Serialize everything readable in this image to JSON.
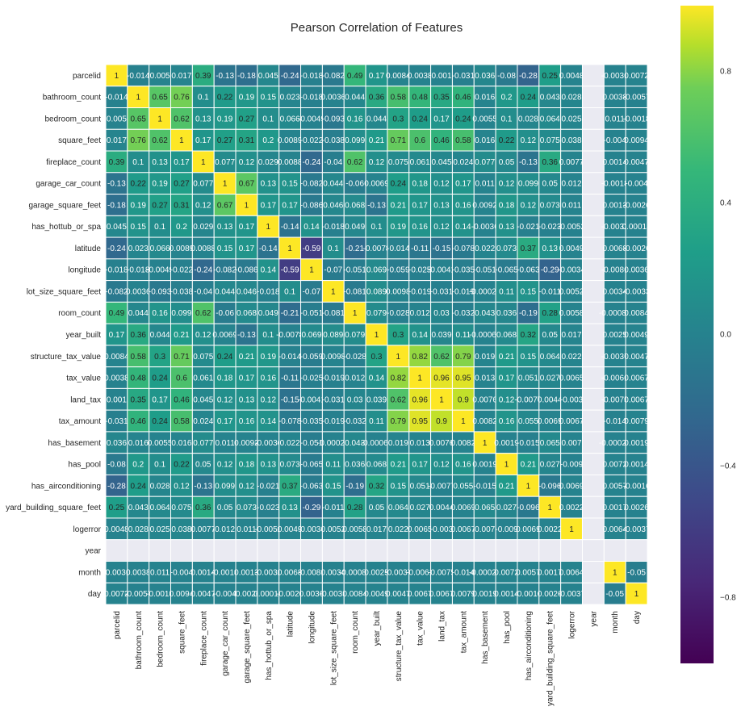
{
  "chart_data": {
    "type": "heatmap",
    "title": "Pearson Correlation of Features",
    "labels": [
      "parcelid",
      "bathroom_count",
      "bedroom_count",
      "square_feet",
      "fireplace_count",
      "garage_car_count",
      "garage_square_feet",
      "has_hottub_or_spa",
      "latitude",
      "longitude",
      "lot_size_square_feet",
      "room_count",
      "year_built",
      "structure_tax_value",
      "tax_value",
      "land_tax",
      "tax_amount",
      "has_basement",
      "has_pool",
      "has_airconditioning",
      "yard_building_square_feet",
      "logerror",
      "year",
      "month",
      "day"
    ],
    "vmin": -1,
    "vmax": 1,
    "colormap": "viridis",
    "colorbar_ticks": [
      "0.8",
      "0.4",
      "0.0",
      "−0.4",
      "−0.8"
    ],
    "colorbar_tick_values": [
      0.8,
      0.4,
      0,
      -0.4,
      -0.8
    ],
    "matrix": [
      [
        1,
        -0.014,
        0.005,
        0.017,
        0.39,
        -0.13,
        -0.18,
        0.045,
        -0.24,
        -0.018,
        -0.082,
        0.49,
        0.17,
        0.0084,
        0.0038,
        0.001,
        -0.031,
        0.036,
        -0.08,
        -0.28,
        0.25,
        0.0048,
        null,
        -0.0031,
        0.0072
      ],
      [
        -0.014,
        1,
        0.65,
        0.76,
        0.1,
        0.22,
        0.19,
        0.15,
        0.023,
        -0.018,
        0.0036,
        0.044,
        0.36,
        0.58,
        0.48,
        0.35,
        0.46,
        0.016,
        0.2,
        0.24,
        0.043,
        0.028,
        null,
        0.0038,
        -0.0057
      ],
      [
        0.005,
        0.65,
        1,
        0.62,
        0.13,
        0.19,
        0.27,
        0.1,
        0.066,
        -0.0049,
        -0.093,
        0.16,
        0.044,
        0.3,
        0.24,
        0.17,
        0.24,
        0.0055,
        0.1,
        0.028,
        0.064,
        0.025,
        null,
        0.011,
        -0.0018
      ],
      [
        0.017,
        0.76,
        0.62,
        1,
        0.17,
        0.27,
        0.31,
        0.2,
        0.0089,
        -0.022,
        -0.038,
        0.099,
        0.21,
        0.71,
        0.6,
        0.46,
        0.58,
        0.016,
        0.22,
        0.12,
        0.075,
        0.038,
        null,
        -0.004,
        0.0094
      ],
      [
        0.39,
        0.1,
        0.13,
        0.17,
        1,
        0.077,
        0.12,
        0.029,
        0.0088,
        -0.24,
        -0.04,
        0.62,
        0.12,
        0.075,
        0.061,
        0.045,
        0.024,
        0.077,
        0.05,
        -0.13,
        0.36,
        0.0077,
        null,
        0.0014,
        0.0047
      ],
      [
        -0.13,
        0.22,
        0.19,
        0.27,
        0.077,
        1,
        0.67,
        0.13,
        0.15,
        -0.082,
        0.044,
        -0.06,
        0.0069,
        0.24,
        0.18,
        0.12,
        0.17,
        0.011,
        0.12,
        0.099,
        0.05,
        0.012,
        null,
        -0.0018,
        -0.004
      ],
      [
        -0.18,
        0.19,
        0.27,
        0.31,
        0.12,
        0.67,
        1,
        0.17,
        0.17,
        -0.086,
        0.046,
        0.068,
        -0.13,
        0.21,
        0.17,
        0.13,
        0.16,
        0.0092,
        0.18,
        0.12,
        0.073,
        0.011,
        null,
        0.0013,
        -0.0026
      ],
      [
        0.045,
        0.15,
        0.1,
        0.2,
        0.029,
        0.13,
        0.17,
        1,
        -0.14,
        0.14,
        -0.018,
        0.049,
        0.1,
        0.19,
        0.16,
        0.12,
        0.14,
        -0.0036,
        0.13,
        -0.021,
        -0.023,
        -0.0052,
        null,
        -0.0032,
        0.00014
      ],
      [
        -0.24,
        0.023,
        0.066,
        0.0089,
        0.0088,
        0.15,
        0.17,
        -0.14,
        1,
        -0.59,
        0.1,
        -0.21,
        -0.0078,
        -0.014,
        -0.11,
        -0.15,
        -0.078,
        0.022,
        0.073,
        0.37,
        0.13,
        0.0049,
        null,
        0.0068,
        -0.0026
      ],
      [
        -0.018,
        -0.018,
        -0.0049,
        -0.022,
        -0.24,
        -0.082,
        -0.086,
        0.14,
        -0.59,
        1,
        -0.07,
        -0.051,
        0.069,
        -0.059,
        -0.025,
        -0.0041,
        -0.035,
        -0.051,
        -0.065,
        -0.063,
        -0.29,
        -0.0034,
        null,
        -0.0081,
        0.0036
      ],
      [
        -0.082,
        0.0036,
        -0.093,
        -0.038,
        -0.04,
        0.044,
        0.046,
        -0.018,
        0.1,
        -0.07,
        1,
        -0.081,
        0.089,
        0.0098,
        -0.019,
        -0.031,
        -0.019,
        -0.00021,
        0.11,
        0.15,
        -0.011,
        0.0052,
        null,
        0.0034,
        -0.0033
      ],
      [
        0.49,
        0.044,
        0.16,
        0.099,
        0.62,
        -0.06,
        0.068,
        0.049,
        -0.21,
        -0.051,
        -0.081,
        1,
        0.079,
        -0.028,
        0.012,
        0.03,
        -0.032,
        0.043,
        0.036,
        -0.19,
        0.28,
        0.0058,
        null,
        -0.00082,
        0.0084
      ],
      [
        0.17,
        0.36,
        0.044,
        0.21,
        0.12,
        0.0069,
        -0.13,
        0.1,
        -0.0078,
        0.069,
        0.089,
        0.079,
        1,
        0.3,
        0.14,
        0.039,
        0.11,
        -0.00066,
        0.068,
        0.32,
        0.05,
        0.017,
        null,
        0.0025,
        0.0049
      ],
      [
        0.0084,
        0.58,
        0.3,
        0.71,
        0.075,
        0.24,
        0.21,
        0.19,
        -0.014,
        -0.059,
        0.0098,
        -0.028,
        0.3,
        1,
        0.82,
        0.62,
        0.79,
        0.019,
        0.21,
        0.15,
        0.064,
        0.022,
        null,
        -0.0037,
        0.0047
      ],
      [
        0.0038,
        0.48,
        0.24,
        0.6,
        0.061,
        0.18,
        0.17,
        0.16,
        -0.11,
        -0.025,
        -0.019,
        0.012,
        0.14,
        0.82,
        1,
        0.96,
        0.95,
        0.013,
        0.17,
        0.051,
        0.027,
        0.0065,
        null,
        -0.0061,
        0.0067
      ],
      [
        0.001,
        0.35,
        0.17,
        0.46,
        0.045,
        0.12,
        0.13,
        0.12,
        -0.15,
        -0.0041,
        -0.031,
        0.03,
        0.039,
        0.62,
        0.96,
        1,
        0.9,
        0.0076,
        0.12,
        -0.0077,
        0.0044,
        -0.003,
        null,
        -0.0075,
        0.0067
      ],
      [
        -0.031,
        0.46,
        0.24,
        0.58,
        0.024,
        0.17,
        0.16,
        0.14,
        -0.078,
        -0.035,
        -0.019,
        -0.032,
        0.11,
        0.79,
        0.95,
        0.9,
        1,
        0.0082,
        0.16,
        0.055,
        0.0069,
        0.0067,
        null,
        -0.014,
        0.0079
      ],
      [
        0.036,
        0.016,
        0.0055,
        0.016,
        0.077,
        0.011,
        0.0092,
        -0.0036,
        0.022,
        -0.051,
        -0.00021,
        0.043,
        -0.00066,
        0.019,
        0.013,
        0.0076,
        0.0082,
        1,
        0.0019,
        -0.015,
        0.065,
        0.007,
        null,
        -0.00028,
        0.0019
      ],
      [
        -0.08,
        0.2,
        0.1,
        0.22,
        0.05,
        0.12,
        0.18,
        0.13,
        0.073,
        -0.065,
        0.11,
        0.036,
        0.068,
        0.21,
        0.17,
        0.12,
        0.16,
        0.0019,
        1,
        0.21,
        0.027,
        -0.009,
        null,
        0.0072,
        0.0014
      ],
      [
        -0.28,
        0.24,
        0.028,
        0.12,
        -0.13,
        0.099,
        0.12,
        -0.021,
        0.37,
        -0.063,
        0.15,
        -0.19,
        0.32,
        0.15,
        0.051,
        -0.0077,
        0.055,
        -0.015,
        0.21,
        1,
        -0.096,
        0.0069,
        null,
        0.0057,
        -0.0016
      ],
      [
        0.25,
        0.043,
        0.064,
        0.075,
        0.36,
        0.05,
        0.073,
        -0.023,
        0.13,
        -0.29,
        -0.011,
        0.28,
        0.05,
        0.064,
        0.027,
        0.0044,
        0.0069,
        0.065,
        0.027,
        -0.096,
        1,
        0.0022,
        null,
        0.0017,
        0.0026
      ],
      [
        0.0048,
        0.028,
        0.025,
        0.038,
        0.0077,
        0.012,
        0.011,
        -0.0052,
        0.0049,
        -0.0034,
        0.0052,
        0.0058,
        0.017,
        0.022,
        0.0065,
        -0.003,
        0.0067,
        0.007,
        -0.009,
        0.0069,
        0.0022,
        1,
        null,
        0.0064,
        -0.0037
      ],
      [
        null,
        null,
        null,
        null,
        null,
        null,
        null,
        null,
        null,
        null,
        null,
        null,
        null,
        null,
        null,
        null,
        null,
        null,
        null,
        null,
        null,
        null,
        null,
        null,
        null
      ],
      [
        -0.0031,
        0.0038,
        0.011,
        -0.004,
        0.0014,
        -0.0018,
        0.0013,
        -0.0032,
        0.0068,
        -0.0081,
        0.0034,
        -0.00082,
        0.0025,
        -0.0037,
        -0.0061,
        -0.0075,
        -0.014,
        -0.00028,
        0.0072,
        0.0057,
        0.0017,
        0.0064,
        null,
        1,
        -0.05
      ],
      [
        0.0072,
        -0.0057,
        -0.0018,
        0.0094,
        0.0047,
        -0.004,
        -0.0026,
        0.00014,
        -0.0026,
        0.0036,
        -0.0033,
        0.0084,
        0.0049,
        0.0047,
        0.0067,
        0.0067,
        0.0079,
        0.0019,
        0.0014,
        -0.0016,
        0.0026,
        -0.0037,
        null,
        -0.05,
        1
      ]
    ],
    "missing_color": "#eaeaf2"
  }
}
